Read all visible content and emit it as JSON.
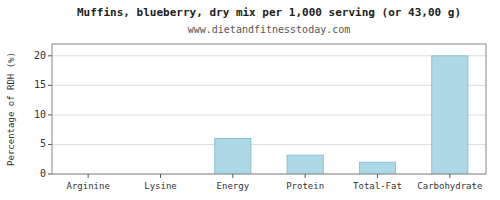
{
  "chart_data": {
    "type": "bar",
    "title": "Muffins, blueberry, dry mix per 1,000 serving (or 43,00 g)",
    "subtitle": "www.dietandfitnesstoday.com",
    "categories": [
      "Arginine",
      "Lysine",
      "Energy",
      "Protein",
      "Total-Fat",
      "Carbohydrate"
    ],
    "values": [
      0.0,
      0.0,
      6.0,
      3.2,
      2.0,
      20.0
    ],
    "color": "#add8e6",
    "ylabel": "Percentage of RDH (%)",
    "ylim": [
      0,
      22
    ],
    "yticks": [
      0,
      5,
      10,
      15,
      20
    ],
    "grid": true
  }
}
